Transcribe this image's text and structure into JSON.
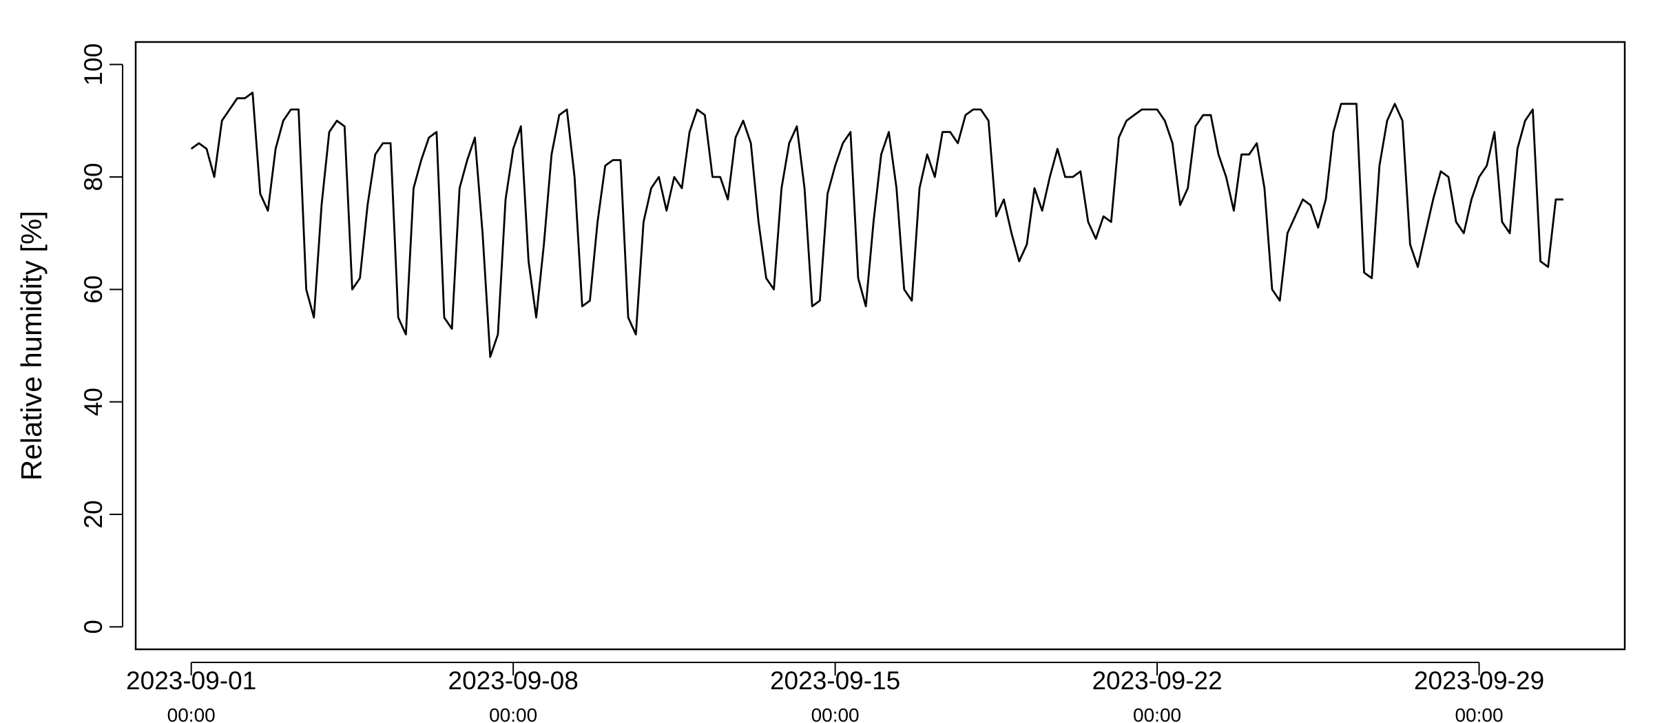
{
  "chart_data": {
    "type": "line",
    "y_label": "Relative humidity [%]",
    "x": [
      "2023-09-01 00:00",
      "2023-09-01 04:00",
      "2023-09-01 08:00",
      "2023-09-01 12:00",
      "2023-09-01 16:00",
      "2023-09-01 20:00",
      "2023-09-02 00:00",
      "2023-09-02 04:00",
      "2023-09-02 08:00",
      "2023-09-02 12:00",
      "2023-09-02 16:00",
      "2023-09-02 20:00",
      "2023-09-03 00:00",
      "2023-09-03 04:00",
      "2023-09-03 08:00",
      "2023-09-03 12:00",
      "2023-09-03 16:00",
      "2023-09-03 20:00",
      "2023-09-04 00:00",
      "2023-09-04 04:00",
      "2023-09-04 08:00",
      "2023-09-04 12:00",
      "2023-09-04 16:00",
      "2023-09-04 20:00",
      "2023-09-05 00:00",
      "2023-09-05 04:00",
      "2023-09-05 08:00",
      "2023-09-05 12:00",
      "2023-09-05 16:00",
      "2023-09-05 20:00",
      "2023-09-06 00:00",
      "2023-09-06 04:00",
      "2023-09-06 08:00",
      "2023-09-06 12:00",
      "2023-09-06 16:00",
      "2023-09-06 20:00",
      "2023-09-07 00:00",
      "2023-09-07 04:00",
      "2023-09-07 08:00",
      "2023-09-07 12:00",
      "2023-09-07 16:00",
      "2023-09-07 20:00",
      "2023-09-08 00:00",
      "2023-09-08 04:00",
      "2023-09-08 08:00",
      "2023-09-08 12:00",
      "2023-09-08 16:00",
      "2023-09-08 20:00",
      "2023-09-09 00:00",
      "2023-09-09 04:00",
      "2023-09-09 08:00",
      "2023-09-09 12:00",
      "2023-09-09 16:00",
      "2023-09-09 20:00",
      "2023-09-10 00:00",
      "2023-09-10 04:00",
      "2023-09-10 08:00",
      "2023-09-10 12:00",
      "2023-09-10 16:00",
      "2023-09-10 20:00",
      "2023-09-11 00:00",
      "2023-09-11 04:00",
      "2023-09-11 08:00",
      "2023-09-11 12:00",
      "2023-09-11 16:00",
      "2023-09-11 20:00",
      "2023-09-12 00:00",
      "2023-09-12 04:00",
      "2023-09-12 08:00",
      "2023-09-12 12:00",
      "2023-09-12 16:00",
      "2023-09-12 20:00",
      "2023-09-13 00:00",
      "2023-09-13 04:00",
      "2023-09-13 08:00",
      "2023-09-13 12:00",
      "2023-09-13 16:00",
      "2023-09-13 20:00",
      "2023-09-14 00:00",
      "2023-09-14 04:00",
      "2023-09-14 08:00",
      "2023-09-14 12:00",
      "2023-09-14 16:00",
      "2023-09-14 20:00",
      "2023-09-15 00:00",
      "2023-09-15 04:00",
      "2023-09-15 08:00",
      "2023-09-15 12:00",
      "2023-09-15 16:00",
      "2023-09-15 20:00",
      "2023-09-16 00:00",
      "2023-09-16 04:00",
      "2023-09-16 08:00",
      "2023-09-16 12:00",
      "2023-09-16 16:00",
      "2023-09-16 20:00",
      "2023-09-17 00:00",
      "2023-09-17 04:00",
      "2023-09-17 08:00",
      "2023-09-17 12:00",
      "2023-09-17 16:00",
      "2023-09-17 20:00",
      "2023-09-18 00:00",
      "2023-09-18 04:00",
      "2023-09-18 08:00",
      "2023-09-18 12:00",
      "2023-09-18 16:00",
      "2023-09-18 20:00",
      "2023-09-19 00:00",
      "2023-09-19 04:00",
      "2023-09-19 08:00",
      "2023-09-19 12:00",
      "2023-09-19 16:00",
      "2023-09-19 20:00",
      "2023-09-20 00:00",
      "2023-09-20 04:00",
      "2023-09-20 08:00",
      "2023-09-20 12:00",
      "2023-09-20 16:00",
      "2023-09-20 20:00",
      "2023-09-21 00:00",
      "2023-09-21 04:00",
      "2023-09-21 08:00",
      "2023-09-21 12:00",
      "2023-09-21 16:00",
      "2023-09-21 20:00",
      "2023-09-22 00:00",
      "2023-09-22 04:00",
      "2023-09-22 08:00",
      "2023-09-22 12:00",
      "2023-09-22 16:00",
      "2023-09-22 20:00",
      "2023-09-23 00:00",
      "2023-09-23 04:00",
      "2023-09-23 08:00",
      "2023-09-23 12:00",
      "2023-09-23 16:00",
      "2023-09-23 20:00",
      "2023-09-24 00:00",
      "2023-09-24 04:00",
      "2023-09-24 08:00",
      "2023-09-24 12:00",
      "2023-09-24 16:00",
      "2023-09-24 20:00",
      "2023-09-25 00:00",
      "2023-09-25 04:00",
      "2023-09-25 08:00",
      "2023-09-25 12:00",
      "2023-09-25 16:00",
      "2023-09-25 20:00",
      "2023-09-26 00:00",
      "2023-09-26 04:00",
      "2023-09-26 08:00",
      "2023-09-26 12:00",
      "2023-09-26 16:00",
      "2023-09-26 20:00",
      "2023-09-27 00:00",
      "2023-09-27 04:00",
      "2023-09-27 08:00",
      "2023-09-27 12:00",
      "2023-09-27 16:00",
      "2023-09-27 20:00",
      "2023-09-28 00:00",
      "2023-09-28 04:00",
      "2023-09-28 08:00",
      "2023-09-28 12:00",
      "2023-09-28 16:00",
      "2023-09-28 20:00",
      "2023-09-29 00:00",
      "2023-09-29 04:00",
      "2023-09-29 08:00",
      "2023-09-29 12:00",
      "2023-09-29 16:00",
      "2023-09-29 20:00",
      "2023-09-30 00:00",
      "2023-09-30 04:00",
      "2023-09-30 08:00",
      "2023-09-30 12:00",
      "2023-09-30 16:00",
      "2023-09-30 20:00"
    ],
    "series": [
      {
        "color": "#000000",
        "values": [
          85,
          86,
          85,
          80,
          90,
          92,
          94,
          94,
          95,
          77,
          74,
          85,
          90,
          92,
          92,
          60,
          55,
          75,
          88,
          90,
          89,
          60,
          62,
          75,
          84,
          86,
          86,
          55,
          52,
          78,
          83,
          87,
          88,
          55,
          53,
          78,
          83,
          87,
          70,
          48,
          52,
          76,
          85,
          89,
          65,
          55,
          68,
          84,
          91,
          92,
          80,
          57,
          58,
          72,
          82,
          83,
          83,
          55,
          52,
          72,
          78,
          80,
          74,
          80,
          78,
          88,
          92,
          91,
          80,
          80,
          76,
          87,
          90,
          86,
          72,
          62,
          60,
          78,
          86,
          89,
          78,
          57,
          58,
          77,
          82,
          86,
          88,
          62,
          57,
          72,
          84,
          88,
          78,
          60,
          58,
          78,
          84,
          80,
          88,
          88,
          86,
          91,
          92,
          92,
          90,
          73,
          76,
          70,
          65,
          68,
          78,
          74,
          80,
          85,
          80,
          80,
          81,
          72,
          69,
          73,
          72,
          87,
          90,
          91,
          92,
          92,
          92,
          90,
          86,
          75,
          78,
          89,
          91,
          91,
          84,
          80,
          74,
          84,
          84,
          86,
          78,
          60,
          58,
          70,
          73,
          76,
          75,
          71,
          76,
          88,
          93,
          93,
          93,
          63,
          62,
          82,
          90,
          93,
          90,
          68,
          64,
          70,
          76,
          81,
          80,
          72,
          70,
          76,
          80,
          82,
          88,
          72,
          70,
          85,
          90,
          92,
          65,
          64,
          76,
          76
        ]
      }
    ],
    "xlim": [
      "2023-08-30 19:00",
      "2023-10-02 04:00"
    ],
    "xticks": [
      {
        "value": "2023-09-01 00:00",
        "label": [
          "2023-09-01",
          "00:00"
        ]
      },
      {
        "value": "2023-09-08 00:00",
        "label": [
          "2023-09-08",
          "00:00"
        ]
      },
      {
        "value": "2023-09-15 00:00",
        "label": [
          "2023-09-15",
          "00:00"
        ]
      },
      {
        "value": "2023-09-22 00:00",
        "label": [
          "2023-09-22",
          "00:00"
        ]
      },
      {
        "value": "2023-09-29 00:00",
        "label": [
          "2023-09-29",
          "00:00"
        ]
      }
    ],
    "ylim": [
      -4,
      104
    ],
    "yticks": [
      0,
      20,
      40,
      60,
      80,
      100
    ],
    "grid": false
  }
}
